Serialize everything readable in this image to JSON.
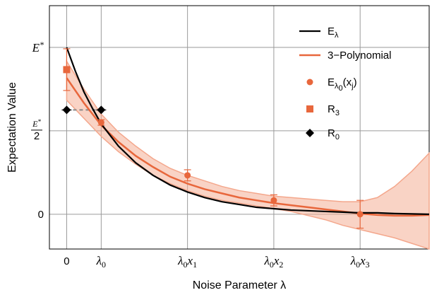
{
  "chart_data": {
    "type": "line",
    "xlabel": "Noise Parameter λ",
    "ylabel": "Expectation Value",
    "xlim": [
      -0.2,
      4.2
    ],
    "ylim": [
      -0.25,
      1.5
    ],
    "grid": true,
    "legend_position": "top-right",
    "x_ticks": [
      {
        "x": 0,
        "label": "0"
      },
      {
        "x": 0.4,
        "label": "λ0"
      },
      {
        "x": 1.4,
        "label": "λ0x1"
      },
      {
        "x": 2.4,
        "label": "λ0x2"
      },
      {
        "x": 3.4,
        "label": "λ0x3"
      }
    ],
    "y_ticks": [
      {
        "y": 0,
        "label": "0"
      },
      {
        "y": 0.6,
        "label": "E*/2"
      },
      {
        "y": 1.2,
        "label": "E*"
      }
    ],
    "colors": {
      "black": "#000000",
      "orange": "#E8673C",
      "band": "#F4A78C",
      "dashed": "#888888"
    },
    "series": [
      {
        "name": "Eλ",
        "kind": "curve",
        "color": "#000000",
        "x": [
          0,
          0.1,
          0.2,
          0.3,
          0.4,
          0.6,
          0.8,
          1.0,
          1.2,
          1.4,
          1.6,
          1.8,
          2.0,
          2.2,
          2.4,
          2.6,
          2.8,
          3.0,
          3.2,
          3.4,
          3.6,
          3.8,
          4.2
        ],
        "y": [
          1.2,
          1.03,
          0.88,
          0.76,
          0.65,
          0.49,
          0.37,
          0.28,
          0.21,
          0.16,
          0.12,
          0.09,
          0.07,
          0.05,
          0.04,
          0.03,
          0.025,
          0.02,
          0.015,
          0.01,
          0.01,
          0.005,
          0.0
        ]
      },
      {
        "name": "3−Polynomial",
        "kind": "curve",
        "color": "#E8673C",
        "x": [
          0,
          0.2,
          0.4,
          0.6,
          0.8,
          1.0,
          1.2,
          1.4,
          1.6,
          1.8,
          2.0,
          2.2,
          2.4,
          2.6,
          2.8,
          3.0,
          3.2,
          3.4,
          3.6,
          3.8,
          4.0,
          4.2
        ],
        "y": [
          0.98,
          0.8,
          0.64,
          0.52,
          0.42,
          0.34,
          0.27,
          0.22,
          0.18,
          0.15,
          0.12,
          0.1,
          0.08,
          0.065,
          0.05,
          0.035,
          0.02,
          0.005,
          -0.005,
          -0.01,
          -0.01,
          -0.005
        ],
        "band_upper": [
          1.1,
          0.9,
          0.72,
          0.59,
          0.49,
          0.4,
          0.33,
          0.28,
          0.24,
          0.2,
          0.17,
          0.15,
          0.13,
          0.12,
          0.11,
          0.1,
          0.09,
          0.09,
          0.12,
          0.2,
          0.31,
          0.44
        ],
        "band_lower": [
          0.82,
          0.69,
          0.56,
          0.45,
          0.36,
          0.28,
          0.22,
          0.17,
          0.13,
          0.1,
          0.08,
          0.06,
          0.04,
          0.02,
          -0.01,
          -0.04,
          -0.08,
          -0.11,
          -0.14,
          -0.17,
          -0.21,
          -0.25
        ]
      },
      {
        "name": "Eλ0(xj)",
        "kind": "points",
        "marker": "circle",
        "color": "#E8673C",
        "x": [
          0.4,
          1.4,
          2.4,
          3.4
        ],
        "y": [
          0.66,
          0.28,
          0.1,
          0.0
        ],
        "err": [
          0.02,
          0.04,
          0.04,
          0.1
        ]
      },
      {
        "name": "R3",
        "kind": "points",
        "marker": "square",
        "color": "#E8673C",
        "x": [
          0
        ],
        "y": [
          1.04
        ],
        "err": [
          0.15
        ]
      },
      {
        "name": "R0",
        "kind": "points",
        "marker": "diamond",
        "color": "#000000",
        "x": [
          0,
          0.4
        ],
        "y": [
          0.75,
          0.75
        ]
      }
    ]
  }
}
